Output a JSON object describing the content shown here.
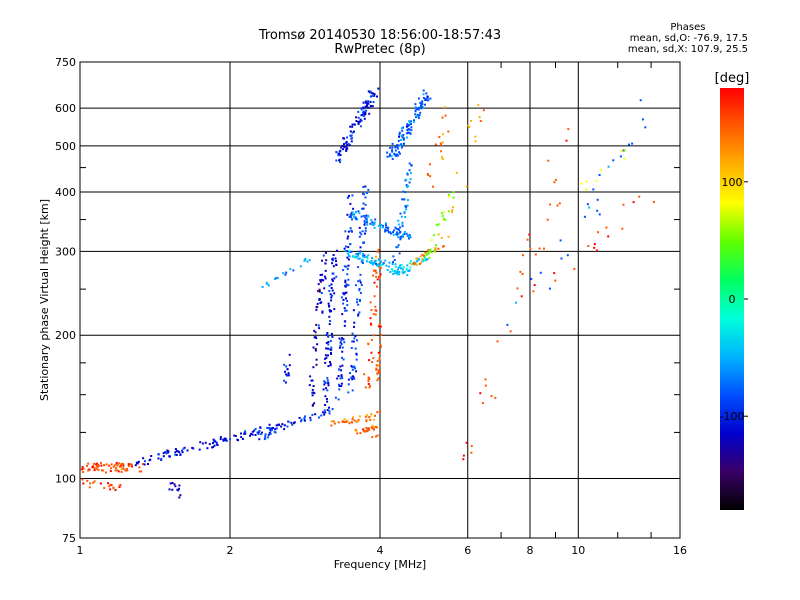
{
  "chart_data": {
    "type": "scatter",
    "title": "Tromsø 20140530 18:56:00-18:57:43",
    "subtitle": "RwPretec (8p)",
    "xlabel": "Frequency [MHz]",
    "ylabel": "Stationary phase Virtual Height [km]",
    "x_scale": "log",
    "y_scale": "log",
    "xlim": [
      1,
      16
    ],
    "ylim": [
      75,
      750
    ],
    "x_ticks": [
      1,
      2,
      4,
      6,
      8,
      10,
      16
    ],
    "y_ticks": [
      75,
      100,
      200,
      300,
      400,
      500,
      600,
      750
    ],
    "grid": true,
    "phases": {
      "title": "Phases",
      "line_o": "mean, sd,O: -76.9, 17.5",
      "line_x": "mean, sd,X: 107.9, 25.5"
    },
    "colorbar": {
      "label": "[deg]",
      "ticks": [
        100,
        0,
        -100
      ],
      "range": [
        -180,
        180
      ],
      "colors": [
        "#000000",
        "#3a0068",
        "#0000cc",
        "#0050ff",
        "#00b4ff",
        "#00ffd8",
        "#00ff60",
        "#60ff00",
        "#ffff00",
        "#ffb000",
        "#ff5a00",
        "#ff0000"
      ]
    },
    "traces": [
      {
        "from": [
          1.0,
          105
        ],
        "to": [
          1.35,
          106
        ],
        "phase": 150,
        "spread": 0.04,
        "n": 70
      },
      {
        "from": [
          1.0,
          98
        ],
        "to": [
          1.2,
          96
        ],
        "phase": 160,
        "spread": 0.03,
        "n": 20
      },
      {
        "from": [
          1.3,
          108
        ],
        "to": [
          2.6,
          130
        ],
        "phase": -110,
        "spread": 0.03,
        "n": 110
      },
      {
        "from": [
          2.3,
          122
        ],
        "to": [
          3.2,
          140
        ],
        "phase": -95,
        "spread": 0.03,
        "n": 45
      },
      {
        "from": [
          1.5,
          98
        ],
        "to": [
          1.6,
          93
        ],
        "phase": -120,
        "spread": 0.04,
        "n": 12
      },
      {
        "from": [
          2.6,
          160
        ],
        "to": [
          2.6,
          180
        ],
        "phase": -100,
        "spread": 0.03,
        "n": 14
      },
      {
        "from": [
          2.3,
          250
        ],
        "to": [
          2.9,
          290
        ],
        "phase": -60,
        "spread": 0.02,
        "n": 18
      },
      {
        "from": [
          2.9,
          140
        ],
        "to": [
          3.1,
          300
        ],
        "phase": -115,
        "spread": 0.03,
        "n": 60
      },
      {
        "from": [
          3.1,
          140
        ],
        "to": [
          3.25,
          300
        ],
        "phase": -110,
        "spread": 0.03,
        "n": 80
      },
      {
        "from": [
          3.3,
          145
        ],
        "to": [
          3.5,
          400
        ],
        "phase": -100,
        "spread": 0.03,
        "n": 90
      },
      {
        "from": [
          3.5,
          150
        ],
        "to": [
          3.75,
          420
        ],
        "phase": -90,
        "spread": 0.03,
        "n": 80
      },
      {
        "from": [
          3.75,
          150
        ],
        "to": [
          3.98,
          300
        ],
        "phase": 150,
        "spread": 0.04,
        "n": 50
      },
      {
        "from": [
          3.9,
          120
        ],
        "to": [
          3.95,
          140
        ],
        "phase": 140,
        "spread": 0.03,
        "n": 10
      },
      {
        "from": [
          3.2,
          130
        ],
        "to": [
          3.9,
          135
        ],
        "phase": 140,
        "spread": 0.025,
        "n": 35
      },
      {
        "from": [
          3.6,
          125
        ],
        "to": [
          3.9,
          128
        ],
        "phase": 150,
        "spread": 0.02,
        "n": 20
      },
      {
        "from": [
          3.95,
          160
        ],
        "to": [
          4.0,
          210
        ],
        "phase": 150,
        "spread": 0.02,
        "n": 25
      },
      {
        "from": [
          3.4,
          300
        ],
        "to": [
          4.6,
          270
        ],
        "phase": -50,
        "spread": 0.03,
        "n": 70
      },
      {
        "from": [
          3.5,
          360
        ],
        "to": [
          4.6,
          320
        ],
        "phase": -70,
        "spread": 0.035,
        "n": 80
      },
      {
        "from": [
          4.2,
          270
        ],
        "to": [
          5.0,
          290
        ],
        "phase": -40,
        "spread": 0.03,
        "n": 40
      },
      {
        "from": [
          4.6,
          280
        ],
        "to": [
          5.3,
          310
        ],
        "phase": 130,
        "spread": 0.03,
        "n": 25
      },
      {
        "from": [
          5.0,
          290
        ],
        "to": [
          5.6,
          400
        ],
        "phase": 50,
        "spread": 0.04,
        "n": 25
      },
      {
        "from": [
          3.3,
          470
        ],
        "to": [
          3.9,
          650
        ],
        "phase": -100,
        "spread": 0.04,
        "n": 100
      },
      {
        "from": [
          4.2,
          470
        ],
        "to": [
          5.0,
          650
        ],
        "phase": -80,
        "spread": 0.04,
        "n": 110
      },
      {
        "from": [
          4.3,
          280
        ],
        "to": [
          4.6,
          460
        ],
        "phase": -70,
        "spread": 0.03,
        "n": 50
      },
      {
        "from": [
          5.0,
          400
        ],
        "to": [
          5.5,
          600
        ],
        "phase": 140,
        "spread": 0.05,
        "n": 18
      },
      {
        "from": [
          5.2,
          300
        ],
        "to": [
          6.5,
          650
        ],
        "phase": 120,
        "spread": 0.08,
        "n": 18
      },
      {
        "from": [
          6.0,
          110
        ],
        "to": [
          10.0,
          600
        ],
        "phase": 150,
        "spread": 0.1,
        "n": 35
      },
      {
        "from": [
          7.5,
          220
        ],
        "to": [
          14.0,
          600
        ],
        "phase": -80,
        "spread": 0.1,
        "n": 25
      },
      {
        "from": [
          9.0,
          250
        ],
        "to": [
          14.0,
          400
        ],
        "phase": 160,
        "spread": 0.08,
        "n": 15
      },
      {
        "from": [
          10.0,
          400
        ],
        "to": [
          13.0,
          500
        ],
        "phase": 80,
        "spread": 0.05,
        "n": 8
      }
    ]
  }
}
